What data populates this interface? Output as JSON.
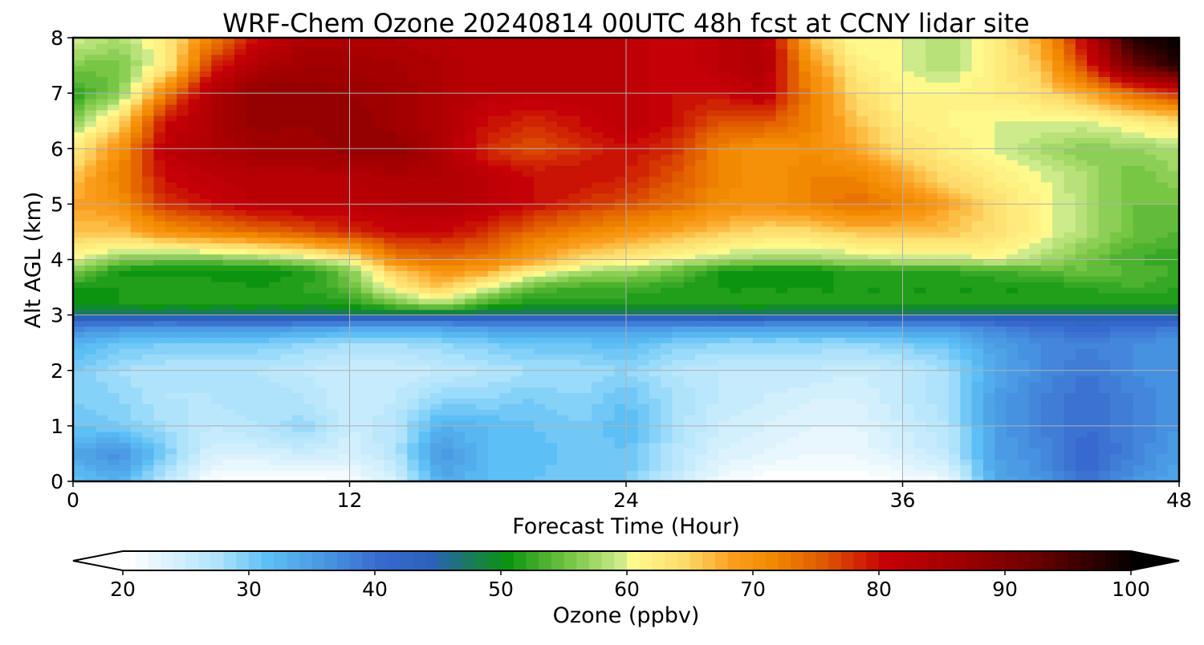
{
  "chart_data": {
    "type": "heatmap",
    "title": "WRF-Chem Ozone  20240814 00UTC 48h fcst at CCNY lidar site",
    "xlabel": "Forecast Time (Hour)",
    "ylabel": "Alt AGL (km)",
    "xlim": [
      0,
      48
    ],
    "ylim": [
      0,
      8
    ],
    "x_ticks": [
      "0",
      "12",
      "24",
      "36",
      "48"
    ],
    "y_ticks": [
      "0",
      "1",
      "2",
      "3",
      "4",
      "5",
      "6",
      "7",
      "8"
    ],
    "grid": true,
    "colorbar": {
      "label": "Ozone  (ppbv)",
      "min": 20,
      "max": 100,
      "step": 1,
      "extend": "both",
      "ticks": [
        "20",
        "30",
        "40",
        "50",
        "60",
        "70",
        "80",
        "90",
        "100"
      ],
      "color_stops": [
        {
          "v": 20,
          "c": "#ffffff"
        },
        {
          "v": 27,
          "c": "#aee3fb"
        },
        {
          "v": 31,
          "c": "#5cbff5"
        },
        {
          "v": 35,
          "c": "#4a9be4"
        },
        {
          "v": 40,
          "c": "#3869cf"
        },
        {
          "v": 44,
          "c": "#2a62bb"
        },
        {
          "v": 47,
          "c": "#1a7a5e"
        },
        {
          "v": 50,
          "c": "#0c9410"
        },
        {
          "v": 55,
          "c": "#77c644"
        },
        {
          "v": 59,
          "c": "#cdeb8a"
        },
        {
          "v": 60,
          "c": "#fff98c"
        },
        {
          "v": 64,
          "c": "#fddc6c"
        },
        {
          "v": 68,
          "c": "#fb9d1c"
        },
        {
          "v": 71,
          "c": "#f28a00"
        },
        {
          "v": 75,
          "c": "#e05a00"
        },
        {
          "v": 80,
          "c": "#c50006"
        },
        {
          "v": 86,
          "c": "#9e0000"
        },
        {
          "v": 92,
          "c": "#6a0000"
        },
        {
          "v": 100,
          "c": "#000000"
        }
      ]
    },
    "x": [
      0,
      2,
      4,
      6,
      8,
      10,
      12,
      14,
      16,
      18,
      20,
      22,
      24,
      26,
      28,
      30,
      32,
      34,
      36,
      38,
      40,
      42,
      44,
      46,
      48
    ],
    "y": [
      0,
      0.5,
      1,
      1.5,
      2,
      2.5,
      2.8,
      3,
      3.2,
      3.5,
      3.8,
      4,
      4.5,
      5,
      5.5,
      6,
      6.5,
      7,
      7.5,
      8
    ],
    "z": [
      [
        31,
        33,
        26,
        21,
        20,
        20,
        21,
        24,
        34,
        32,
        31,
        30,
        30,
        26,
        22,
        20,
        20,
        20,
        21,
        22,
        34,
        36,
        40,
        36,
        34
      ],
      [
        34,
        37,
        30,
        24,
        24,
        25,
        24,
        27,
        36,
        32,
        32,
        30,
        31,
        27,
        24,
        23,
        22,
        22,
        24,
        26,
        35,
        37,
        41,
        38,
        35
      ],
      [
        31,
        30,
        28,
        26,
        27,
        29,
        25,
        27,
        33,
        32,
        31,
        30,
        32,
        28,
        25,
        24,
        23,
        23,
        25,
        27,
        35,
        38,
        40,
        38,
        36
      ],
      [
        30,
        29,
        27,
        27,
        28,
        27,
        25,
        26,
        29,
        29,
        30,
        29,
        31,
        28,
        26,
        25,
        24,
        24,
        26,
        28,
        35,
        38,
        40,
        38,
        36
      ],
      [
        30,
        28,
        27,
        27,
        27,
        26,
        25,
        25,
        26,
        27,
        28,
        28,
        29,
        27,
        26,
        26,
        26,
        25,
        26,
        28,
        34,
        37,
        39,
        37,
        36
      ],
      [
        33,
        31,
        30,
        30,
        30,
        29,
        28,
        28,
        29,
        30,
        31,
        31,
        32,
        30,
        29,
        29,
        29,
        29,
        30,
        31,
        35,
        37,
        38,
        37,
        36
      ],
      [
        38,
        37,
        36,
        37,
        37,
        36,
        35,
        34,
        35,
        36,
        36,
        36,
        36,
        36,
        35,
        35,
        35,
        35,
        36,
        36,
        38,
        40,
        41,
        40,
        39
      ],
      [
        46,
        47,
        47,
        47,
        47,
        47,
        47,
        46,
        46,
        46,
        46,
        46,
        46,
        46,
        47,
        47,
        46,
        46,
        46,
        46,
        46,
        46,
        46,
        46,
        46
      ],
      [
        50,
        51,
        51,
        51,
        51,
        51,
        51,
        55,
        58,
        52,
        51,
        51,
        51,
        51,
        51,
        51,
        51,
        51,
        51,
        51,
        51,
        51,
        51,
        51,
        51
      ],
      [
        51,
        51,
        52,
        52,
        51,
        52,
        54,
        62,
        66,
        60,
        54,
        53,
        53,
        52,
        51,
        51,
        51,
        51,
        51,
        51,
        51,
        51,
        52,
        53,
        52
      ],
      [
        56,
        51,
        50,
        50,
        50,
        51,
        56,
        66,
        70,
        68,
        62,
        58,
        57,
        55,
        51,
        50,
        50,
        52,
        52,
        52,
        53,
        54,
        55,
        54,
        53
      ],
      [
        60,
        56,
        55,
        55,
        56,
        58,
        62,
        72,
        74,
        72,
        68,
        64,
        62,
        60,
        58,
        57,
        57,
        58,
        59,
        59,
        60,
        58,
        55,
        53,
        52
      ],
      [
        66,
        66,
        70,
        72,
        74,
        76,
        78,
        80,
        80,
        78,
        74,
        72,
        70,
        68,
        66,
        64,
        64,
        66,
        66,
        66,
        64,
        61,
        58,
        55,
        54
      ],
      [
        68,
        70,
        78,
        80,
        82,
        82,
        82,
        83,
        84,
        82,
        80,
        78,
        76,
        74,
        71,
        70,
        72,
        74,
        72,
        68,
        64,
        61,
        58,
        55,
        55
      ],
      [
        66,
        72,
        80,
        82,
        83,
        83,
        83,
        84,
        84,
        82,
        80,
        80,
        79,
        76,
        72,
        70,
        72,
        72,
        68,
        64,
        62,
        60,
        58,
        55,
        57
      ],
      [
        62,
        70,
        82,
        84,
        86,
        86,
        88,
        88,
        84,
        78,
        76,
        78,
        80,
        78,
        72,
        70,
        71,
        68,
        64,
        62,
        60,
        58,
        56,
        57,
        58
      ],
      [
        56,
        64,
        80,
        84,
        88,
        87,
        88,
        86,
        84,
        80,
        78,
        80,
        82,
        80,
        76,
        76,
        72,
        66,
        62,
        61,
        60,
        60,
        60,
        62,
        64
      ],
      [
        52,
        56,
        72,
        84,
        88,
        88,
        87,
        86,
        84,
        82,
        82,
        82,
        82,
        80,
        80,
        82,
        72,
        64,
        61,
        61,
        62,
        64,
        68,
        74,
        78
      ],
      [
        56,
        55,
        62,
        78,
        84,
        86,
        86,
        85,
        84,
        82,
        82,
        82,
        82,
        80,
        82,
        84,
        70,
        62,
        60,
        58,
        62,
        66,
        78,
        92,
        98
      ],
      [
        60,
        58,
        62,
        72,
        80,
        84,
        84,
        84,
        83,
        82,
        82,
        82,
        82,
        80,
        82,
        84,
        66,
        60,
        60,
        58,
        62,
        68,
        82,
        98,
        100
      ]
    ]
  }
}
